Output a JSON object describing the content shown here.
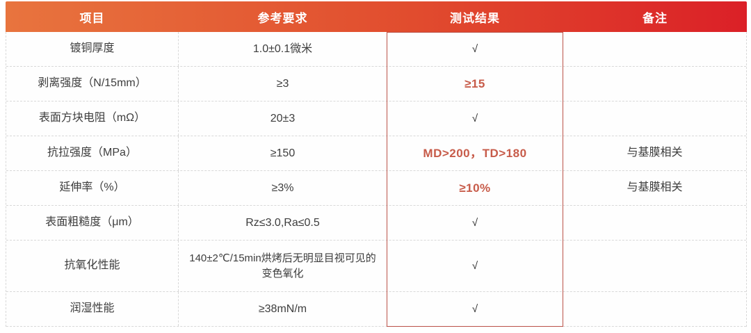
{
  "palette": {
    "header_gradient_left": "#E8743E",
    "header_gradient_right": "#DB2027",
    "header_text": "#FFFFFF",
    "body_text": "#3D3D3D",
    "highlight_text": "#C75B49",
    "result_box_border": "#BA5147",
    "grid_dash": "#D8D8D8"
  },
  "table": {
    "columns": [
      {
        "key": "item",
        "label": "项目"
      },
      {
        "key": "requirement",
        "label": "参考要求"
      },
      {
        "key": "result",
        "label": "测试结果"
      },
      {
        "key": "remark",
        "label": "备注"
      }
    ],
    "rows": [
      {
        "item": "镀铜厚度",
        "requirement": "1.0±0.1微米",
        "result": "√",
        "result_highlight": false,
        "remark": ""
      },
      {
        "item": "剥离强度（N/15mm）",
        "requirement": "≥3",
        "result": "≥15",
        "result_highlight": true,
        "remark": ""
      },
      {
        "item": "表面方块电阻（mΩ）",
        "requirement": "20±3",
        "result": "√",
        "result_highlight": false,
        "remark": ""
      },
      {
        "item": "抗拉强度（MPa）",
        "requirement": "≥150",
        "result": "MD>200，TD>180",
        "result_highlight": true,
        "remark": "与基膜相关"
      },
      {
        "item": "延伸率（%）",
        "requirement": "≥3%",
        "result": "≥10%",
        "result_highlight": true,
        "remark": "与基膜相关"
      },
      {
        "item": "表面粗糙度（μm）",
        "requirement": "Rz≤3.0,Ra≤0.5",
        "result": "√",
        "result_highlight": false,
        "remark": ""
      },
      {
        "item": "抗氧化性能",
        "requirement": "140±2℃/15min烘烤后无明显目视可见的变色氧化",
        "result": "√",
        "result_highlight": false,
        "remark": ""
      },
      {
        "item": "润湿性能",
        "requirement": "≥38mN/m",
        "result": "√",
        "result_highlight": false,
        "remark": ""
      }
    ]
  },
  "chart_data": {
    "type": "table",
    "title": "",
    "columns": [
      "项目",
      "参考要求",
      "测试结果",
      "备注"
    ],
    "rows": [
      [
        "镀铜厚度",
        "1.0±0.1微米",
        "√",
        ""
      ],
      [
        "剥离强度（N/15mm）",
        "≥3",
        "≥15",
        ""
      ],
      [
        "表面方块电阻（mΩ）",
        "20±3",
        "√",
        ""
      ],
      [
        "抗拉强度（MPa）",
        "≥150",
        "MD>200，TD>180",
        "与基膜相关"
      ],
      [
        "延伸率（%）",
        "≥3%",
        "≥10%",
        "与基膜相关"
      ],
      [
        "表面粗糙度（μm）",
        "Rz≤3.0,Ra≤0.5",
        "√",
        ""
      ],
      [
        "抗氧化性能",
        "140±2℃/15min烘烤后无明显目视可见的变色氧化",
        "√",
        ""
      ],
      [
        "润湿性能",
        "≥38mN/m",
        "√",
        ""
      ]
    ]
  }
}
